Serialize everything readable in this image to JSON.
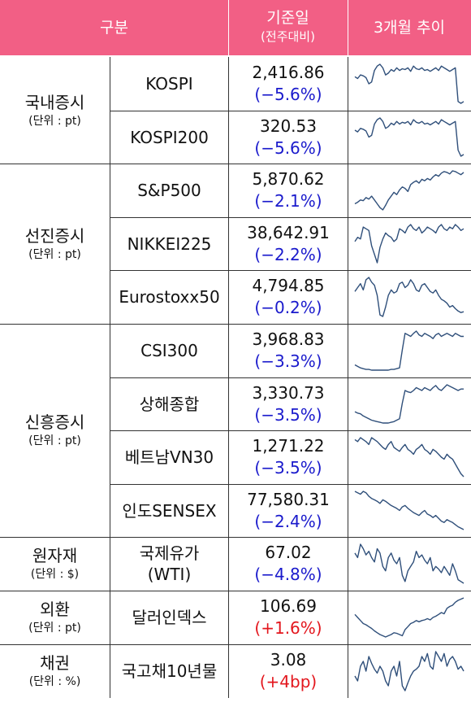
{
  "header": {
    "category": "구분",
    "base_date": "기준일",
    "base_date_sub": "(전주대비)",
    "trend": "3개월 추이"
  },
  "groups": [
    {
      "title": "국내증시",
      "unit": "(단위 : pt)"
    },
    {
      "title": "선진증시",
      "unit": "(단위 : pt)"
    },
    {
      "title": "신흥증시",
      "unit": "(단위 : pt)"
    },
    {
      "title": "원자재",
      "unit": "(단위 : $)"
    },
    {
      "title": "외환",
      "unit": "(단위 : pt)"
    },
    {
      "title": "채권",
      "unit": "(단위 : %)"
    }
  ],
  "rows": [
    {
      "name": "KOSPI",
      "value": "2,416.86",
      "change": "(−5.6%)",
      "dir": "neg",
      "trend": [
        78,
        76,
        80,
        79,
        77,
        70,
        72,
        85,
        90,
        92,
        88,
        80,
        82,
        86,
        84,
        88,
        85,
        87,
        86,
        88,
        84,
        90,
        87,
        86,
        88,
        85,
        86,
        84,
        86,
        88,
        85,
        90,
        88,
        86,
        84,
        86,
        88,
        50,
        48,
        50
      ]
    },
    {
      "name": "KOSPI200",
      "value": "320.53",
      "change": "(−5.6%)",
      "dir": "neg",
      "trend": [
        78,
        76,
        80,
        79,
        77,
        70,
        72,
        85,
        90,
        92,
        88,
        80,
        82,
        86,
        84,
        88,
        85,
        87,
        86,
        88,
        84,
        90,
        87,
        86,
        88,
        85,
        86,
        84,
        86,
        88,
        85,
        90,
        88,
        86,
        84,
        86,
        88,
        55,
        48,
        50
      ]
    },
    {
      "name": "S&P500",
      "value": "5,870.62",
      "change": "(−2.1%)",
      "dir": "neg",
      "trend": [
        30,
        32,
        35,
        34,
        38,
        36,
        40,
        35,
        30,
        25,
        22,
        28,
        35,
        40,
        45,
        42,
        48,
        52,
        50,
        46,
        55,
        58,
        60,
        57,
        62,
        60,
        63,
        61,
        65,
        68,
        66,
        70,
        72,
        71,
        69,
        73,
        72,
        70,
        68,
        71
      ]
    },
    {
      "name": "NIKKEI225",
      "value": "38,642.91",
      "change": "(−2.2%)",
      "dir": "neg",
      "trend": [
        45,
        50,
        48,
        62,
        60,
        58,
        40,
        30,
        20,
        38,
        48,
        55,
        52,
        50,
        45,
        48,
        60,
        58,
        55,
        62,
        65,
        60,
        58,
        62,
        55,
        58,
        62,
        60,
        58,
        55,
        62,
        65,
        60,
        58,
        62,
        60,
        65,
        62,
        58,
        60
      ]
    },
    {
      "name": "Eurostoxx50",
      "value": "4,794.85",
      "change": "(−0.2%)",
      "dir": "neg",
      "trend": [
        60,
        65,
        70,
        62,
        75,
        78,
        72,
        68,
        55,
        30,
        28,
        40,
        55,
        62,
        58,
        60,
        70,
        72,
        65,
        68,
        75,
        70,
        62,
        60,
        68,
        70,
        65,
        60,
        58,
        62,
        55,
        50,
        48,
        45,
        40,
        42,
        38,
        35,
        33,
        34
      ]
    },
    {
      "name": "CSI300",
      "value": "3,968.83",
      "change": "(−3.3%)",
      "dir": "neg",
      "trend": [
        20,
        18,
        16,
        15,
        14,
        14,
        13,
        13,
        13,
        13,
        13,
        13,
        13,
        14,
        14,
        15,
        16,
        40,
        62,
        60,
        58,
        62,
        65,
        60,
        58,
        62,
        60,
        58,
        55,
        60,
        62,
        58,
        60,
        62,
        60,
        58,
        62,
        60,
        58,
        58
      ]
    },
    {
      "name": "상해종합",
      "value": "3,330.73",
      "change": "(−3.5%)",
      "dir": "neg",
      "trend": [
        28,
        26,
        25,
        22,
        20,
        18,
        16,
        15,
        14,
        13,
        12,
        12,
        12,
        13,
        14,
        16,
        18,
        40,
        58,
        56,
        55,
        58,
        62,
        60,
        58,
        62,
        60,
        58,
        62,
        65,
        60,
        58,
        62,
        66,
        64,
        62,
        60,
        58,
        60,
        60
      ]
    },
    {
      "name": "베트남VN30",
      "value": "1,271.22",
      "change": "(−3.5%)",
      "dir": "neg",
      "trend": [
        60,
        58,
        62,
        60,
        58,
        55,
        62,
        60,
        58,
        55,
        52,
        50,
        55,
        58,
        52,
        50,
        48,
        52,
        55,
        50,
        48,
        45,
        50,
        52,
        55,
        50,
        48,
        45,
        50,
        48,
        45,
        42,
        40,
        45,
        42,
        40,
        35,
        30,
        25,
        22
      ]
    },
    {
      "name": "인도SENSEX",
      "value": "77,580.31",
      "change": "(−2.4%)",
      "dir": "neg",
      "trend": [
        72,
        70,
        68,
        72,
        70,
        65,
        62,
        60,
        58,
        55,
        60,
        58,
        55,
        52,
        50,
        48,
        45,
        50,
        52,
        48,
        45,
        42,
        40,
        38,
        42,
        45,
        40,
        38,
        35,
        38,
        34,
        30,
        28,
        32,
        30,
        28,
        25,
        22,
        20,
        18
      ]
    },
    {
      "name": "국제유가\n(WTI)",
      "value": "67.02",
      "change": "(−4.8%)",
      "dir": "neg",
      "trend": [
        60,
        55,
        70,
        65,
        58,
        62,
        55,
        50,
        65,
        60,
        45,
        40,
        55,
        60,
        52,
        48,
        55,
        35,
        28,
        40,
        45,
        50,
        62,
        55,
        58,
        52,
        48,
        55,
        40,
        45,
        42,
        38,
        45,
        40,
        35,
        48,
        40,
        30,
        28,
        26
      ]
    },
    {
      "name": "달러인덱스",
      "value": "106.69",
      "change": "(+1.6%)",
      "dir": "pos",
      "trend": [
        45,
        40,
        35,
        30,
        28,
        25,
        22,
        18,
        15,
        12,
        10,
        8,
        10,
        12,
        15,
        14,
        12,
        10,
        20,
        25,
        30,
        32,
        35,
        33,
        35,
        36,
        38,
        36,
        40,
        42,
        45,
        48,
        46,
        55,
        58,
        60,
        65,
        68,
        70,
        72
      ]
    },
    {
      "name": "국고채10년물",
      "value": "3.08",
      "change": "(+4bp)",
      "dir": "pos",
      "trend": [
        35,
        30,
        45,
        50,
        40,
        55,
        48,
        42,
        38,
        45,
        40,
        30,
        25,
        40,
        45,
        35,
        50,
        25,
        20,
        28,
        35,
        40,
        42,
        45,
        55,
        50,
        58,
        45,
        42,
        60,
        55,
        50,
        58,
        45,
        52,
        55,
        50,
        42,
        45,
        40
      ]
    }
  ]
}
